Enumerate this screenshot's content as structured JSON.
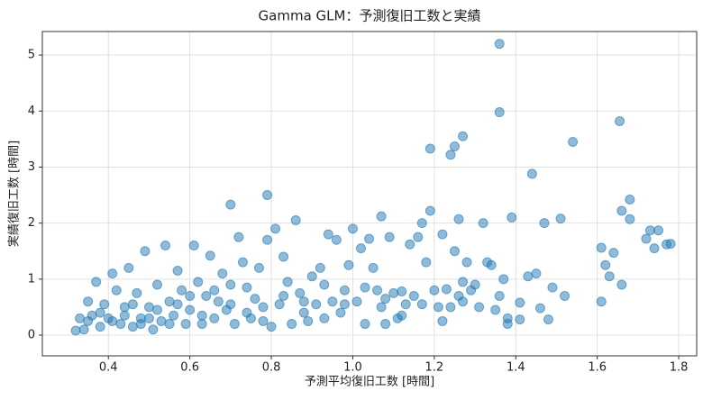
{
  "chart_data": {
    "type": "scatter",
    "title": "Gamma GLM：予測復旧工数と実績",
    "xlabel": "予測平均復旧工数 [時間]",
    "ylabel": "実績復旧工数 [時間]",
    "color": "#1f77b4",
    "grid": true,
    "xlim": [
      0.238,
      1.844
    ],
    "ylim": [
      -0.37,
      5.42
    ],
    "xticks": [
      0.4,
      0.6,
      0.8,
      {
        "value": 1,
        "label": "1.0"
      },
      1.2,
      1.4,
      1.6,
      1.8
    ],
    "yticks": [
      0,
      1,
      2,
      3,
      4,
      5
    ],
    "x": [
      1.36,
      1.36,
      1.54,
      1.655,
      1.44,
      1.27,
      1.25,
      1.19,
      1.24,
      0.79,
      0.7,
      1.07,
      1.19,
      1.26,
      1.32,
      1.39,
      1.47,
      1.51,
      1.66,
      1.68,
      1.68,
      1.72,
      1.74,
      1.75,
      1.77,
      1.78,
      1.73,
      1.61,
      1.64,
      1.62,
      1.66,
      1.63,
      1.61,
      1.52,
      1.49,
      1.48,
      1.46,
      1.45,
      1.43,
      1.41,
      1.41,
      1.38,
      1.38,
      1.37,
      1.36,
      1.33,
      1.34,
      1.3,
      1.29,
      1.28,
      1.27,
      1.26,
      1.25,
      1.24,
      1.23,
      1.22,
      1.21,
      1.2,
      1.18,
      1.17,
      1.16,
      1.15,
      1.14,
      1.13,
      1.12,
      1.11,
      1.1,
      1.09,
      1.08,
      1.07,
      1.06,
      1.05,
      1.04,
      1.03,
      1.02,
      1.01,
      1.0,
      0.99,
      0.98,
      0.97,
      0.96,
      0.95,
      0.94,
      0.93,
      0.92,
      0.91,
      0.9,
      0.89,
      0.88,
      0.87,
      0.86,
      0.85,
      0.84,
      0.83,
      0.82,
      0.81,
      0.8,
      0.79,
      0.78,
      0.77,
      0.76,
      0.75,
      0.74,
      0.73,
      0.72,
      0.71,
      0.7,
      0.69,
      0.68,
      0.67,
      0.66,
      0.65,
      0.64,
      0.63,
      0.62,
      0.61,
      0.6,
      0.59,
      0.58,
      0.57,
      0.56,
      0.55,
      0.54,
      0.53,
      0.52,
      0.51,
      0.5,
      0.49,
      0.48,
      0.47,
      0.46,
      0.45,
      0.44,
      0.43,
      0.42,
      0.41,
      0.4,
      0.39,
      0.38,
      0.37,
      0.36,
      0.35,
      0.34,
      0.33,
      0.32,
      0.35,
      0.38,
      0.41,
      0.44,
      0.46,
      0.48,
      0.5,
      0.52,
      0.55,
      0.57,
      0.6,
      0.63,
      0.66,
      0.7,
      0.74,
      0.78,
      0.83,
      0.88,
      0.93,
      0.98,
      1.03,
      1.08,
      1.12,
      1.17,
      1.22,
      1.27,
      1.31,
      1.35
    ],
    "y": [
      5.2,
      3.98,
      3.45,
      3.82,
      2.88,
      3.55,
      3.37,
      3.33,
      3.22,
      2.5,
      2.33,
      2.12,
      2.22,
      2.07,
      2.0,
      2.1,
      2.0,
      2.08,
      2.22,
      2.42,
      2.07,
      1.72,
      1.55,
      1.87,
      1.62,
      1.63,
      1.87,
      1.56,
      1.47,
      1.25,
      0.9,
      1.05,
      0.6,
      0.7,
      0.85,
      0.28,
      0.48,
      1.1,
      1.05,
      0.58,
      0.28,
      0.2,
      0.3,
      1.0,
      0.7,
      1.3,
      1.25,
      0.9,
      0.8,
      1.3,
      0.6,
      0.7,
      1.5,
      0.5,
      0.82,
      1.8,
      0.5,
      0.8,
      1.3,
      2.0,
      1.75,
      0.7,
      1.62,
      0.55,
      0.78,
      0.3,
      0.75,
      1.75,
      0.2,
      0.5,
      0.8,
      1.2,
      1.72,
      0.2,
      1.55,
      0.6,
      1.9,
      1.25,
      0.8,
      0.4,
      1.7,
      0.6,
      1.8,
      0.3,
      1.2,
      0.55,
      1.05,
      0.25,
      0.6,
      0.75,
      2.05,
      0.2,
      0.95,
      1.4,
      0.55,
      1.9,
      0.15,
      1.7,
      0.5,
      1.2,
      0.65,
      0.3,
      0.85,
      1.3,
      1.75,
      0.2,
      0.9,
      0.45,
      1.1,
      0.6,
      0.3,
      1.42,
      0.7,
      0.2,
      0.95,
      1.6,
      0.45,
      0.2,
      0.8,
      1.15,
      0.35,
      0.6,
      1.6,
      0.25,
      0.9,
      0.1,
      0.5,
      1.5,
      0.3,
      0.75,
      0.15,
      1.2,
      0.5,
      0.2,
      0.8,
      1.1,
      0.3,
      0.55,
      0.15,
      0.95,
      0.35,
      0.6,
      0.1,
      0.3,
      0.08,
      0.25,
      0.4,
      0.25,
      0.35,
      0.55,
      0.2,
      0.3,
      0.45,
      0.2,
      0.55,
      0.7,
      0.35,
      0.8,
      0.55,
      0.4,
      0.25,
      0.7,
      0.4,
      0.9,
      0.55,
      0.85,
      0.65,
      0.35,
      0.55,
      0.25,
      0.95,
      0.5,
      0.45
    ]
  }
}
